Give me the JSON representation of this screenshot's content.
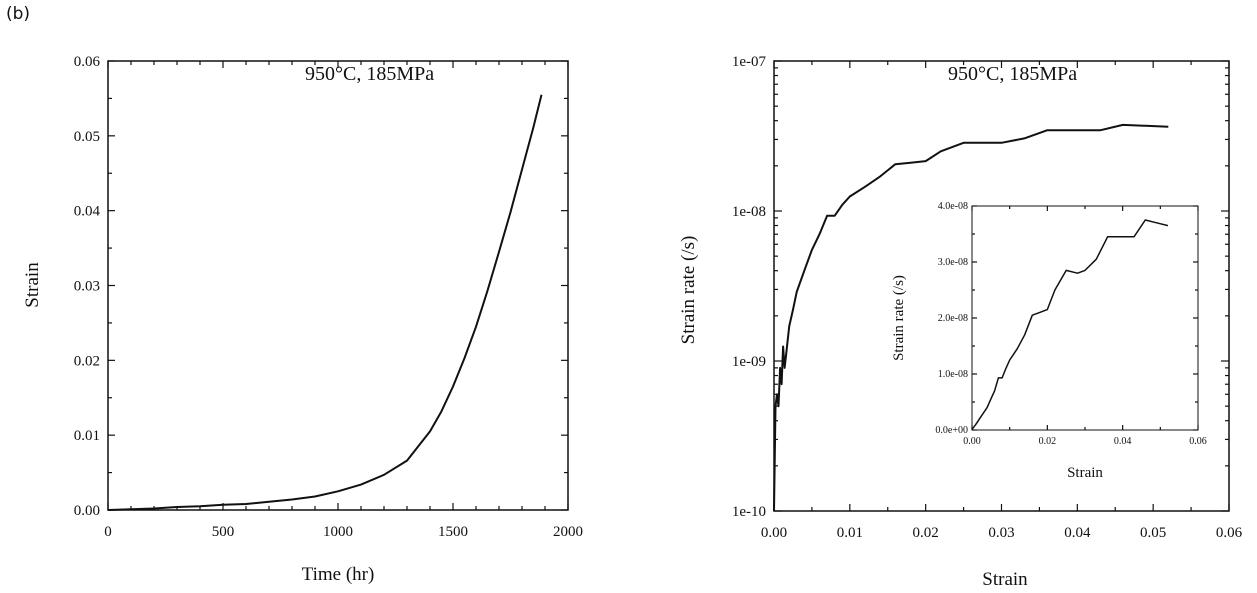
{
  "panel_label": "(b)",
  "chart_data": [
    {
      "type": "line",
      "annotation": "950°C, 185MPa",
      "xlabel": "Time (hr)",
      "ylabel": "Strain",
      "xlim": [
        0,
        2000
      ],
      "ylim": [
        0,
        0.06
      ],
      "xticks": [
        "0",
        "500",
        "1000",
        "1500",
        "2000"
      ],
      "yticks": [
        "0.00",
        "0.01",
        "0.02",
        "0.03",
        "0.04",
        "0.05",
        "0.06"
      ],
      "series": [
        {
          "x": [
            0,
            100,
            200,
            300,
            400,
            500,
            600,
            700,
            800,
            900,
            1000,
            1100,
            1200,
            1300,
            1400,
            1450,
            1500,
            1550,
            1600,
            1650,
            1700,
            1750,
            1800,
            1850,
            1885
          ],
          "y": [
            0.0,
            0.0001,
            0.0002,
            0.0004,
            0.0005,
            0.0007,
            0.0008,
            0.0011,
            0.0014,
            0.0018,
            0.0025,
            0.0034,
            0.0047,
            0.0066,
            0.0105,
            0.0132,
            0.0165,
            0.0203,
            0.0245,
            0.0293,
            0.0345,
            0.0398,
            0.0455,
            0.0512,
            0.0555
          ]
        }
      ]
    },
    {
      "type": "line",
      "annotation": "950°C, 185MPa",
      "xlabel": "Strain",
      "ylabel": "Strain rate (/s)",
      "xlim": [
        0,
        0.06
      ],
      "ylim": [
        1e-10,
        1e-07
      ],
      "yscale": "log",
      "xticks": [
        "0.00",
        "0.01",
        "0.02",
        "0.03",
        "0.04",
        "0.05",
        "0.06"
      ],
      "yticks": [
        "1e-10",
        "1e-09",
        "1e-08",
        "1e-07"
      ],
      "series": [
        {
          "x": [
            0.0,
            0.0002,
            0.0004,
            0.0006,
            0.0008,
            0.001,
            0.0012,
            0.0014,
            0.0016,
            0.002,
            0.0025,
            0.003,
            0.004,
            0.005,
            0.006,
            0.007,
            0.008,
            0.009,
            0.01,
            0.012,
            0.014,
            0.016,
            0.018,
            0.02,
            0.022,
            0.025,
            0.028,
            0.03,
            0.033,
            0.036,
            0.04,
            0.043,
            0.046,
            0.049,
            0.052
          ],
          "y": [
            1e-10,
            5e-10,
            6e-10,
            5e-10,
            9e-10,
            7e-10,
            1.25e-09,
            9e-10,
            1.1e-09,
            1.7e-09,
            2.2e-09,
            2.9e-09,
            4e-09,
            5.5e-09,
            7e-09,
            9.3e-09,
            9.3e-09,
            1.1e-08,
            1.25e-08,
            1.45e-08,
            1.7e-08,
            2.05e-08,
            2.1e-08,
            2.15e-08,
            2.5e-08,
            2.85e-08,
            2.85e-08,
            2.85e-08,
            3.05e-08,
            3.45e-08,
            3.45e-08,
            3.45e-08,
            3.75e-08,
            3.7e-08,
            3.65e-08
          ]
        }
      ]
    },
    {
      "type": "line",
      "role": "inset",
      "xlabel": "Strain",
      "ylabel": "Strain rate (/s)",
      "xlim": [
        0,
        0.06
      ],
      "ylim": [
        0,
        4e-08
      ],
      "xticks": [
        "0.00",
        "0.02",
        "0.04",
        "0.06"
      ],
      "yticks": [
        "0.0e+00",
        "1.0e-08",
        "2.0e-08",
        "3.0e-08",
        "4.0e-08"
      ],
      "series": [
        {
          "x": [
            0.0,
            0.001,
            0.002,
            0.003,
            0.004,
            0.005,
            0.006,
            0.007,
            0.008,
            0.009,
            0.01,
            0.012,
            0.014,
            0.016,
            0.018,
            0.02,
            0.022,
            0.025,
            0.028,
            0.03,
            0.033,
            0.036,
            0.04,
            0.043,
            0.046,
            0.049,
            0.052
          ],
          "y": [
            1e-10,
            1e-09,
            2e-09,
            3e-09,
            4e-09,
            5.5e-09,
            7e-09,
            9.3e-09,
            9.3e-09,
            1.1e-08,
            1.25e-08,
            1.45e-08,
            1.7e-08,
            2.05e-08,
            2.1e-08,
            2.15e-08,
            2.5e-08,
            2.85e-08,
            2.8e-08,
            2.85e-08,
            3.05e-08,
            3.45e-08,
            3.45e-08,
            3.45e-08,
            3.75e-08,
            3.7e-08,
            3.65e-08
          ]
        }
      ]
    }
  ]
}
